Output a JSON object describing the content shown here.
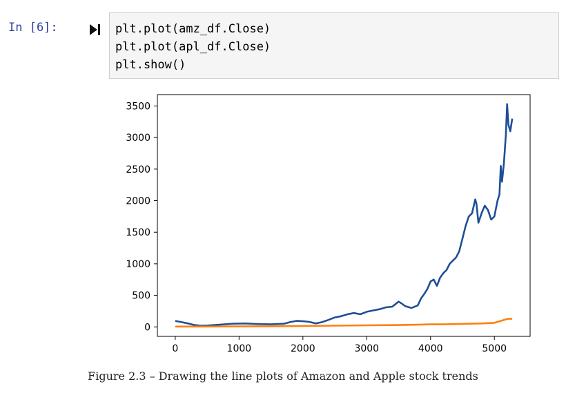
{
  "cell": {
    "prompt": "In [6]:",
    "run_icon": "run-cell-icon",
    "code_lines": [
      "plt.plot(amz_df.Close)",
      "plt.plot(apl_df.Close)",
      "plt.show()"
    ]
  },
  "chart_data": {
    "type": "line",
    "title": "",
    "xlabel": "",
    "ylabel": "",
    "xlim": [
      -280,
      5560
    ],
    "ylim": [
      -150,
      3680
    ],
    "xticks": [
      0,
      1000,
      2000,
      3000,
      4000,
      5000
    ],
    "yticks": [
      0,
      500,
      1000,
      1500,
      2000,
      2500,
      3000,
      3500
    ],
    "grid": false,
    "legend": "none",
    "series": [
      {
        "color": "#1f4e97",
        "x": [
          0,
          100,
          200,
          300,
          400,
          500,
          700,
          900,
          1100,
          1300,
          1500,
          1700,
          1800,
          1900,
          2000,
          2100,
          2200,
          2300,
          2400,
          2500,
          2600,
          2700,
          2800,
          2900,
          3000,
          3100,
          3200,
          3300,
          3400,
          3500,
          3550,
          3600,
          3700,
          3800,
          3850,
          3900,
          3950,
          4000,
          4050,
          4100,
          4150,
          4200,
          4250,
          4300,
          4350,
          4400,
          4450,
          4500,
          4550,
          4600,
          4650,
          4700,
          4720,
          4750,
          4800,
          4850,
          4900,
          4950,
          5000,
          5050,
          5080,
          5100,
          5120,
          5150,
          5180,
          5200,
          5220,
          5250,
          5280
        ],
        "y": [
          95,
          75,
          55,
          30,
          20,
          22,
          35,
          50,
          55,
          45,
          40,
          50,
          75,
          95,
          90,
          80,
          55,
          75,
          110,
          150,
          170,
          200,
          220,
          200,
          240,
          260,
          280,
          310,
          320,
          400,
          370,
          330,
          300,
          340,
          450,
          520,
          600,
          720,
          750,
          650,
          780,
          850,
          900,
          1000,
          1050,
          1100,
          1200,
          1400,
          1600,
          1750,
          1800,
          2020,
          1950,
          1650,
          1800,
          1920,
          1850,
          1700,
          1750,
          2000,
          2100,
          2550,
          2300,
          2600,
          3050,
          3530,
          3200,
          3100,
          3300
        ]
      },
      {
        "color": "#ff7f0e",
        "x": [
          0,
          500,
          1000,
          1500,
          2000,
          2500,
          3000,
          3500,
          3800,
          4000,
          4200,
          4400,
          4600,
          4800,
          5000,
          5100,
          5150,
          5200,
          5250,
          5280
        ],
        "y": [
          5,
          5,
          8,
          10,
          15,
          20,
          25,
          30,
          35,
          40,
          40,
          45,
          50,
          55,
          65,
          95,
          110,
          125,
          130,
          125
        ]
      }
    ]
  },
  "caption": "Figure 2.3 – Drawing the line plots of Amazon and Apple stock trends"
}
